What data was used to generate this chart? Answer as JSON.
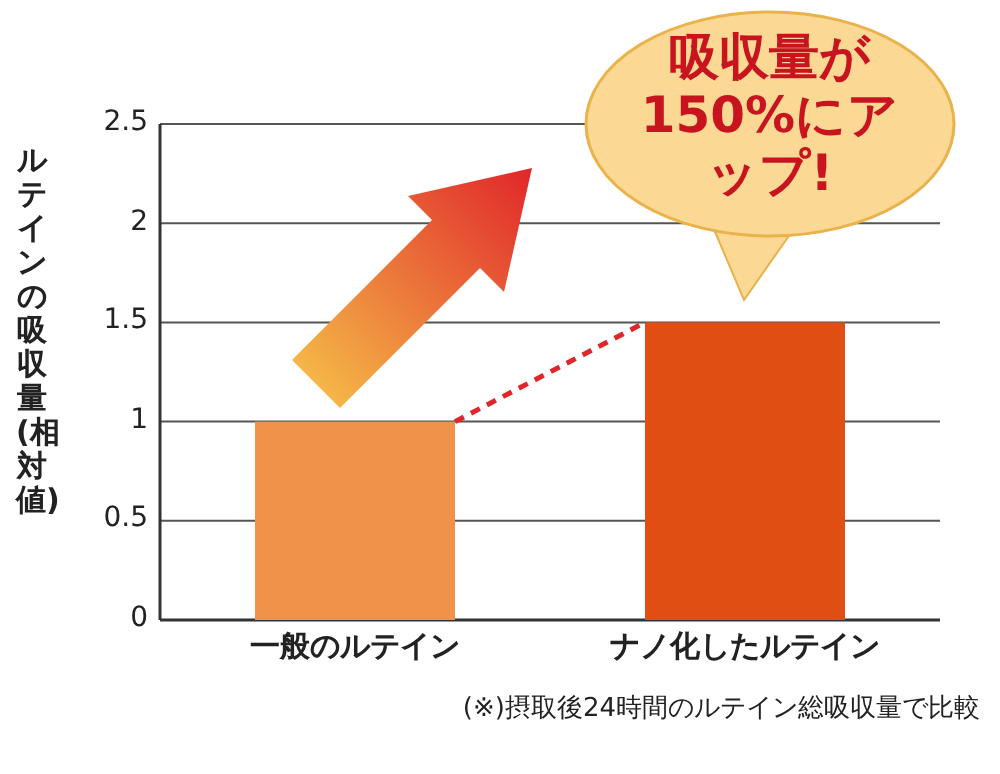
{
  "chart_data": {
    "type": "bar",
    "ylabel": "ルテインの吸収量(相対値)",
    "categories": [
      "一般のルテイン",
      "ナノ化したルテイン"
    ],
    "values": [
      1,
      1.5
    ],
    "colors": [
      "#f0924a",
      "#e04e14"
    ],
    "ylim": [
      0,
      2.5
    ],
    "yticks": [
      0,
      0.5,
      1,
      1.5,
      2,
      2.5
    ],
    "grid": "y",
    "annotations": [
      "吸収量が150%にアップ!",
      "(※)摂取後24時間のルテイン総吸収量で比較"
    ]
  }
}
